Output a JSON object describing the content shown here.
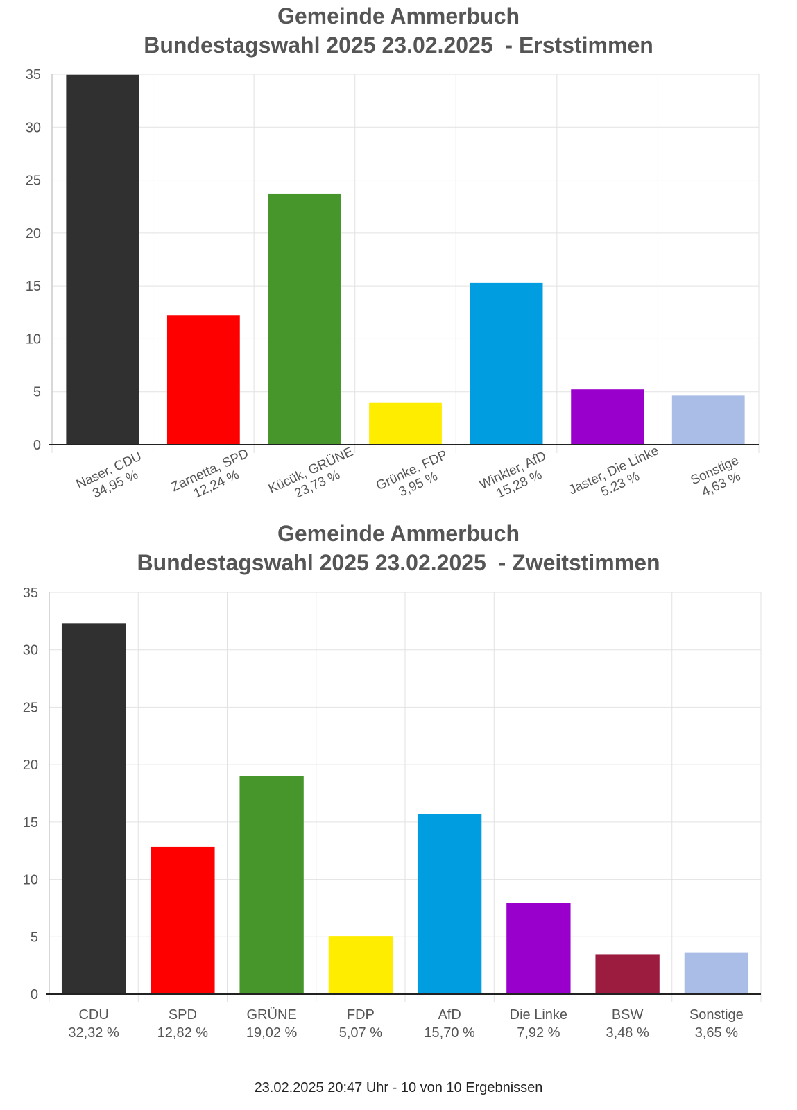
{
  "chart_data": [
    {
      "type": "bar",
      "title_line1": "Gemeinde Ammerbuch",
      "title_line2": "Bundestagswahl 2025 23.02.2025  - Erststimmen",
      "ylim": [
        0,
        35
      ],
      "yticks": [
        0,
        5,
        10,
        15,
        20,
        25,
        30,
        35
      ],
      "grid": true,
      "label_style": "rotated",
      "categories": [
        "Naser, CDU",
        "Zarnetta, SPD",
        "Kücük, GRÜNE",
        "Grünke, FDP",
        "Winkler, AfD",
        "Jaster, Die Linke",
        "Sonstige"
      ],
      "value_labels": [
        "34,95 %",
        "12,24 %",
        "23,73 %",
        "3,95 %",
        "15,28 %",
        "5,23 %",
        "4,63 %"
      ],
      "values": [
        34.95,
        12.24,
        23.73,
        3.95,
        15.28,
        5.23,
        4.63
      ],
      "colors": [
        "#303030",
        "#ff0000",
        "#46962b",
        "#ffed00",
        "#009ee0",
        "#9900cc",
        "#aabde6"
      ]
    },
    {
      "type": "bar",
      "title_line1": "Gemeinde Ammerbuch",
      "title_line2": "Bundestagswahl 2025 23.02.2025  - Zweitstimmen",
      "ylim": [
        0,
        35
      ],
      "yticks": [
        0,
        5,
        10,
        15,
        20,
        25,
        30,
        35
      ],
      "grid": true,
      "label_style": "horizontal",
      "categories": [
        "CDU",
        "SPD",
        "GRÜNE",
        "FDP",
        "AfD",
        "Die Linke",
        "BSW",
        "Sonstige"
      ],
      "value_labels": [
        "32,32 %",
        "12,82 %",
        "19,02 %",
        "5,07 %",
        "15,70 %",
        "7,92 %",
        "3,48 %",
        "3,65 %"
      ],
      "values": [
        32.32,
        12.82,
        19.02,
        5.07,
        15.7,
        7.92,
        3.48,
        3.65
      ],
      "colors": [
        "#303030",
        "#ff0000",
        "#46962b",
        "#ffed00",
        "#009ee0",
        "#9900cc",
        "#9c1c3f",
        "#aabde6"
      ]
    }
  ],
  "footer": "23.02.2025 20:47 Uhr - 10 von 10 Ergebnissen"
}
